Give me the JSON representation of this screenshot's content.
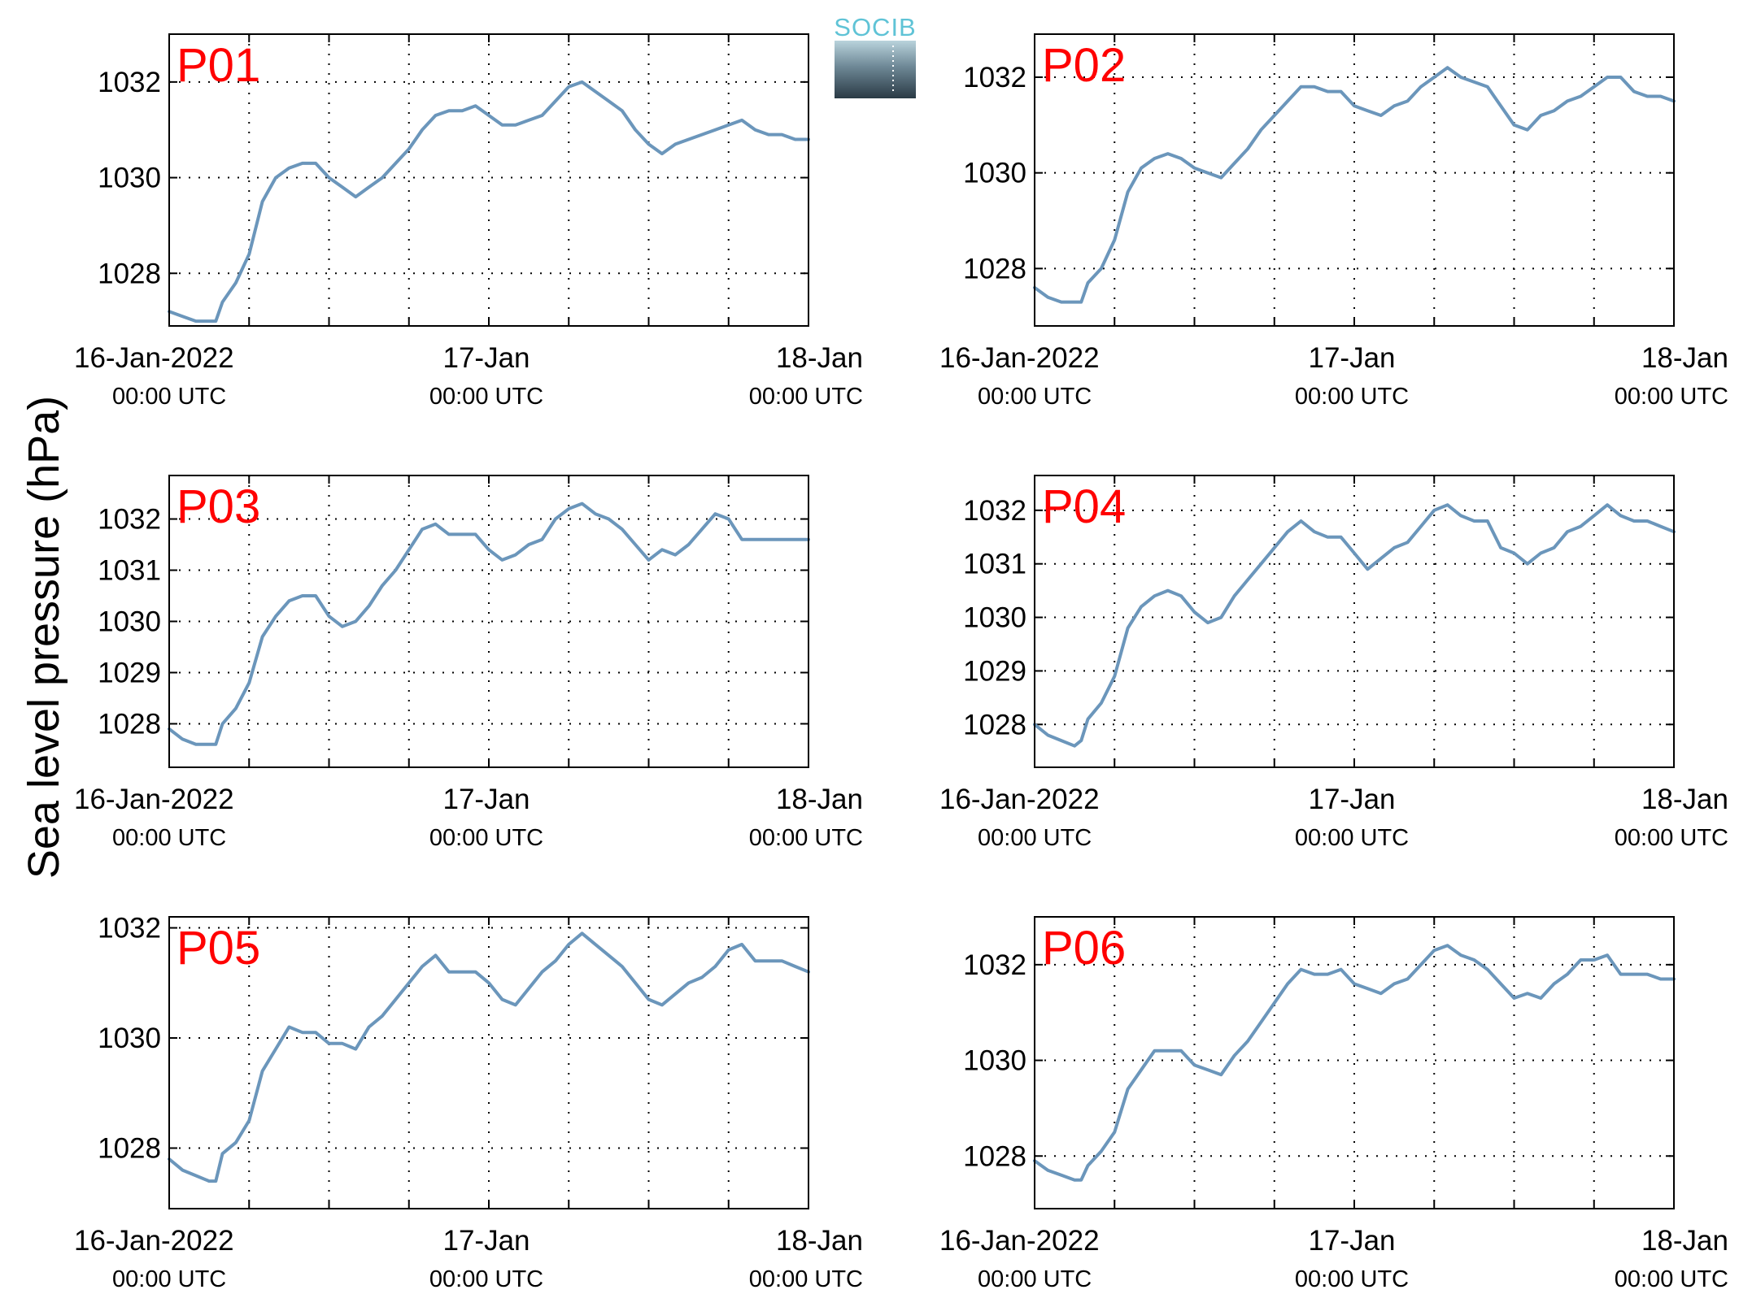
{
  "logo": {
    "text": "SOCIB"
  },
  "ylabel": "Sea level pressure (hPa)",
  "colors": {
    "line": "#6b96bb",
    "panel_tag": "#ff0000"
  },
  "chart_data": [
    {
      "type": "line",
      "panel": "P01",
      "xlim": [
        0,
        48
      ],
      "ylim": [
        1026.9,
        1033.0
      ],
      "yticks": [
        1028,
        1030,
        1032
      ],
      "xticks": [
        {
          "value": 0,
          "label": "16-Jan-2022",
          "sub": "00:00 UTC"
        },
        {
          "value": 24,
          "label": "17-Jan",
          "sub": "00:00 UTC"
        },
        {
          "value": 48,
          "label": "18-Jan",
          "sub": "00:00 UTC"
        }
      ],
      "grid_x": [
        6,
        12,
        18,
        24,
        30,
        36,
        42
      ],
      "series": [
        {
          "x": [
            0,
            1,
            2,
            3,
            3.5,
            4,
            5,
            6,
            7,
            8,
            9,
            10,
            11,
            12,
            13,
            14,
            15,
            16,
            17,
            18,
            19,
            20,
            21,
            22,
            23,
            24,
            25,
            26,
            27,
            28,
            29,
            30,
            31,
            32,
            33,
            34,
            35,
            36,
            37,
            38,
            39,
            40,
            41,
            42,
            43,
            44,
            45,
            46,
            47,
            48
          ],
          "y": [
            1027.2,
            1027.1,
            1027.0,
            1027.0,
            1027.0,
            1027.4,
            1027.8,
            1028.4,
            1029.5,
            1030.0,
            1030.2,
            1030.3,
            1030.3,
            1030.0,
            1029.8,
            1029.6,
            1029.8,
            1030.0,
            1030.3,
            1030.6,
            1031.0,
            1031.3,
            1031.4,
            1031.4,
            1031.5,
            1031.3,
            1031.1,
            1031.1,
            1031.2,
            1031.3,
            1031.6,
            1031.9,
            1032.0,
            1031.8,
            1031.6,
            1031.4,
            1031.0,
            1030.7,
            1030.5,
            1030.7,
            1030.8,
            1030.9,
            1031.0,
            1031.1,
            1031.2,
            1031.0,
            1030.9,
            1030.9,
            1030.8,
            1030.8
          ]
        }
      ]
    },
    {
      "type": "line",
      "panel": "P02",
      "xlim": [
        0,
        48
      ],
      "ylim": [
        1026.8,
        1032.9
      ],
      "yticks": [
        1028,
        1030,
        1032
      ],
      "xticks": [
        {
          "value": 0,
          "label": "16-Jan-2022",
          "sub": "00:00 UTC"
        },
        {
          "value": 24,
          "label": "17-Jan",
          "sub": "00:00 UTC"
        },
        {
          "value": 48,
          "label": "18-Jan",
          "sub": "00:00 UTC"
        }
      ],
      "grid_x": [
        6,
        12,
        18,
        24,
        30,
        36,
        42
      ],
      "series": [
        {
          "x": [
            0,
            1,
            2,
            3,
            3.5,
            4,
            5,
            6,
            7,
            8,
            9,
            10,
            11,
            12,
            13,
            14,
            15,
            16,
            17,
            18,
            19,
            20,
            21,
            22,
            23,
            24,
            25,
            26,
            27,
            28,
            29,
            30,
            31,
            32,
            33,
            34,
            35,
            36,
            37,
            38,
            39,
            40,
            41,
            42,
            43,
            44,
            45,
            46,
            47,
            48
          ],
          "y": [
            1027.6,
            1027.4,
            1027.3,
            1027.3,
            1027.3,
            1027.7,
            1028.0,
            1028.6,
            1029.6,
            1030.1,
            1030.3,
            1030.4,
            1030.3,
            1030.1,
            1030.0,
            1029.9,
            1030.2,
            1030.5,
            1030.9,
            1031.2,
            1031.5,
            1031.8,
            1031.8,
            1031.7,
            1031.7,
            1031.4,
            1031.3,
            1031.2,
            1031.4,
            1031.5,
            1031.8,
            1032.0,
            1032.2,
            1032.0,
            1031.9,
            1031.8,
            1031.4,
            1031.0,
            1030.9,
            1031.2,
            1031.3,
            1031.5,
            1031.6,
            1031.8,
            1032.0,
            1032.0,
            1031.7,
            1031.6,
            1031.6,
            1031.5
          ]
        }
      ]
    },
    {
      "type": "line",
      "panel": "P03",
      "xlim": [
        0,
        48
      ],
      "ylim": [
        1027.15,
        1032.85
      ],
      "yticks": [
        1028,
        1029,
        1030,
        1031,
        1032
      ],
      "xticks": [
        {
          "value": 0,
          "label": "16-Jan-2022",
          "sub": "00:00 UTC"
        },
        {
          "value": 24,
          "label": "17-Jan",
          "sub": "00:00 UTC"
        },
        {
          "value": 48,
          "label": "18-Jan",
          "sub": "00:00 UTC"
        }
      ],
      "grid_x": [
        6,
        12,
        18,
        24,
        30,
        36,
        42
      ],
      "series": [
        {
          "x": [
            0,
            1,
            2,
            3,
            3.5,
            4,
            5,
            6,
            7,
            8,
            9,
            10,
            11,
            12,
            13,
            14,
            15,
            16,
            17,
            18,
            19,
            20,
            21,
            22,
            23,
            24,
            25,
            26,
            27,
            28,
            29,
            30,
            31,
            32,
            33,
            34,
            35,
            36,
            37,
            38,
            39,
            40,
            41,
            42,
            43,
            44,
            45,
            46,
            47,
            48
          ],
          "y": [
            1027.9,
            1027.7,
            1027.6,
            1027.6,
            1027.6,
            1028.0,
            1028.3,
            1028.8,
            1029.7,
            1030.1,
            1030.4,
            1030.5,
            1030.5,
            1030.1,
            1029.9,
            1030.0,
            1030.3,
            1030.7,
            1031.0,
            1031.4,
            1031.8,
            1031.9,
            1031.7,
            1031.7,
            1031.7,
            1031.4,
            1031.2,
            1031.3,
            1031.5,
            1031.6,
            1032.0,
            1032.2,
            1032.3,
            1032.1,
            1032.0,
            1031.8,
            1031.5,
            1031.2,
            1031.4,
            1031.3,
            1031.5,
            1031.8,
            1032.1,
            1032.0,
            1031.6,
            1031.6,
            1031.6,
            1031.6,
            1031.6,
            1031.6
          ]
        }
      ]
    },
    {
      "type": "line",
      "panel": "P04",
      "xlim": [
        0,
        48
      ],
      "ylim": [
        1027.2,
        1032.65
      ],
      "yticks": [
        1028,
        1029,
        1030,
        1031,
        1032
      ],
      "xticks": [
        {
          "value": 0,
          "label": "16-Jan-2022",
          "sub": "00:00 UTC"
        },
        {
          "value": 24,
          "label": "17-Jan",
          "sub": "00:00 UTC"
        },
        {
          "value": 48,
          "label": "18-Jan",
          "sub": "00:00 UTC"
        }
      ],
      "grid_x": [
        6,
        12,
        18,
        24,
        30,
        36,
        42
      ],
      "series": [
        {
          "x": [
            0,
            1,
            2,
            3,
            3.5,
            4,
            5,
            6,
            7,
            8,
            9,
            10,
            11,
            12,
            13,
            14,
            15,
            16,
            17,
            18,
            19,
            20,
            21,
            22,
            23,
            24,
            25,
            26,
            27,
            28,
            29,
            30,
            31,
            32,
            33,
            34,
            35,
            36,
            37,
            38,
            39,
            40,
            41,
            42,
            43,
            44,
            45,
            46,
            47,
            48
          ],
          "y": [
            1028.0,
            1027.8,
            1027.7,
            1027.6,
            1027.7,
            1028.1,
            1028.4,
            1028.9,
            1029.8,
            1030.2,
            1030.4,
            1030.5,
            1030.4,
            1030.1,
            1029.9,
            1030.0,
            1030.4,
            1030.7,
            1031.0,
            1031.3,
            1031.6,
            1031.8,
            1031.6,
            1031.5,
            1031.5,
            1031.2,
            1030.9,
            1031.1,
            1031.3,
            1031.4,
            1031.7,
            1032.0,
            1032.1,
            1031.9,
            1031.8,
            1031.8,
            1031.3,
            1031.2,
            1031.0,
            1031.2,
            1031.3,
            1031.6,
            1031.7,
            1031.9,
            1032.1,
            1031.9,
            1031.8,
            1031.8,
            1031.7,
            1031.6
          ]
        }
      ]
    },
    {
      "type": "line",
      "panel": "P05",
      "xlim": [
        0,
        48
      ],
      "ylim": [
        1026.9,
        1032.2
      ],
      "yticks": [
        1028,
        1030,
        1032
      ],
      "xticks": [
        {
          "value": 0,
          "label": "16-Jan-2022",
          "sub": "00:00 UTC"
        },
        {
          "value": 24,
          "label": "17-Jan",
          "sub": "00:00 UTC"
        },
        {
          "value": 48,
          "label": "18-Jan",
          "sub": "00:00 UTC"
        }
      ],
      "grid_x": [
        6,
        12,
        18,
        24,
        30,
        36,
        42
      ],
      "series": [
        {
          "x": [
            0,
            1,
            2,
            3,
            3.5,
            4,
            5,
            6,
            7,
            8,
            9,
            10,
            11,
            12,
            13,
            14,
            15,
            16,
            17,
            18,
            19,
            20,
            21,
            22,
            23,
            24,
            25,
            26,
            27,
            28,
            29,
            30,
            31,
            32,
            33,
            34,
            35,
            36,
            37,
            38,
            39,
            40,
            41,
            42,
            43,
            44,
            45,
            46,
            47,
            48
          ],
          "y": [
            1027.8,
            1027.6,
            1027.5,
            1027.4,
            1027.4,
            1027.9,
            1028.1,
            1028.5,
            1029.4,
            1029.8,
            1030.2,
            1030.1,
            1030.1,
            1029.9,
            1029.9,
            1029.8,
            1030.2,
            1030.4,
            1030.7,
            1031.0,
            1031.3,
            1031.5,
            1031.2,
            1031.2,
            1031.2,
            1031.0,
            1030.7,
            1030.6,
            1030.9,
            1031.2,
            1031.4,
            1031.7,
            1031.9,
            1031.7,
            1031.5,
            1031.3,
            1031.0,
            1030.7,
            1030.6,
            1030.8,
            1031.0,
            1031.1,
            1031.3,
            1031.6,
            1031.7,
            1031.4,
            1031.4,
            1031.4,
            1031.3,
            1031.2
          ]
        }
      ]
    },
    {
      "type": "line",
      "panel": "P06",
      "xlim": [
        0,
        48
      ],
      "ylim": [
        1026.9,
        1033.0
      ],
      "yticks": [
        1028,
        1030,
        1032
      ],
      "xticks": [
        {
          "value": 0,
          "label": "16-Jan-2022",
          "sub": "00:00 UTC"
        },
        {
          "value": 24,
          "label": "17-Jan",
          "sub": "00:00 UTC"
        },
        {
          "value": 48,
          "label": "18-Jan",
          "sub": "00:00 UTC"
        }
      ],
      "grid_x": [
        6,
        12,
        18,
        24,
        30,
        36,
        42
      ],
      "series": [
        {
          "x": [
            0,
            1,
            2,
            3,
            3.5,
            4,
            5,
            6,
            7,
            8,
            9,
            10,
            11,
            12,
            13,
            14,
            15,
            16,
            17,
            18,
            19,
            20,
            21,
            22,
            23,
            24,
            25,
            26,
            27,
            28,
            29,
            30,
            31,
            32,
            33,
            34,
            35,
            36,
            37,
            38,
            39,
            40,
            41,
            42,
            43,
            44,
            45,
            46,
            47,
            48
          ],
          "y": [
            1027.9,
            1027.7,
            1027.6,
            1027.5,
            1027.5,
            1027.8,
            1028.1,
            1028.5,
            1029.4,
            1029.8,
            1030.2,
            1030.2,
            1030.2,
            1029.9,
            1029.8,
            1029.7,
            1030.1,
            1030.4,
            1030.8,
            1031.2,
            1031.6,
            1031.9,
            1031.8,
            1031.8,
            1031.9,
            1031.6,
            1031.5,
            1031.4,
            1031.6,
            1031.7,
            1032.0,
            1032.3,
            1032.4,
            1032.2,
            1032.1,
            1031.9,
            1031.6,
            1031.3,
            1031.4,
            1031.3,
            1031.6,
            1031.8,
            1032.1,
            1032.1,
            1032.2,
            1031.8,
            1031.8,
            1031.8,
            1031.7,
            1031.7
          ]
        }
      ]
    }
  ]
}
